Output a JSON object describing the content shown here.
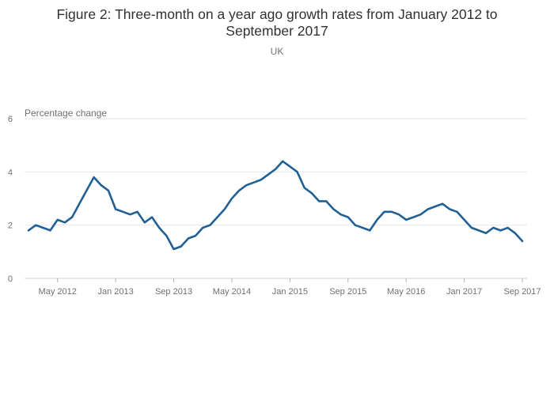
{
  "chart_data": {
    "type": "line",
    "title_lines": [
      "Figure 2: Three-month on a year ago growth rates from January 2012 to",
      "September 2017"
    ],
    "subtitle": "UK",
    "ylabel": "Percentage change",
    "xlabel": "",
    "ylim": [
      0,
      6
    ],
    "yticks": [
      0,
      2,
      4,
      6
    ],
    "x_tick_labels": [
      "May 2012",
      "Jan 2013",
      "Sep 2013",
      "May 2014",
      "Jan 2015",
      "Sep 2015",
      "May 2016",
      "Jan 2017",
      "Sep 2017"
    ],
    "x_tick_months": [
      "2012-05",
      "2013-01",
      "2013-09",
      "2014-05",
      "2015-01",
      "2015-09",
      "2016-05",
      "2017-01",
      "2017-09"
    ],
    "x_start": "2012-01",
    "x_end": "2017-09",
    "grid": true,
    "legend": "none",
    "series": [
      {
        "color": "#206095",
        "x": [
          "2012-01",
          "2012-02",
          "2012-03",
          "2012-04",
          "2012-05",
          "2012-06",
          "2012-07",
          "2012-08",
          "2012-09",
          "2012-10",
          "2012-11",
          "2012-12",
          "2013-01",
          "2013-02",
          "2013-03",
          "2013-04",
          "2013-05",
          "2013-06",
          "2013-07",
          "2013-08",
          "2013-09",
          "2013-10",
          "2013-11",
          "2013-12",
          "2014-01",
          "2014-02",
          "2014-03",
          "2014-04",
          "2014-05",
          "2014-06",
          "2014-07",
          "2014-08",
          "2014-09",
          "2014-10",
          "2014-11",
          "2014-12",
          "2015-01",
          "2015-02",
          "2015-03",
          "2015-04",
          "2015-05",
          "2015-06",
          "2015-07",
          "2015-08",
          "2015-09",
          "2015-10",
          "2015-11",
          "2015-12",
          "2016-01",
          "2016-02",
          "2016-03",
          "2016-04",
          "2016-05",
          "2016-06",
          "2016-07",
          "2016-08",
          "2016-09",
          "2016-10",
          "2016-11",
          "2016-12",
          "2017-01",
          "2017-02",
          "2017-03",
          "2017-04",
          "2017-05",
          "2017-06",
          "2017-07",
          "2017-08",
          "2017-09"
        ],
        "values": [
          1.8,
          2.0,
          1.9,
          1.8,
          2.2,
          2.1,
          2.3,
          2.8,
          3.3,
          3.8,
          3.5,
          3.3,
          2.6,
          2.5,
          2.4,
          2.5,
          2.1,
          2.3,
          1.9,
          1.6,
          1.1,
          1.2,
          1.5,
          1.6,
          1.9,
          2.0,
          2.3,
          2.6,
          3.0,
          3.3,
          3.5,
          3.6,
          3.7,
          3.9,
          4.1,
          4.4,
          4.2,
          4.0,
          3.4,
          3.2,
          2.9,
          2.9,
          2.6,
          2.4,
          2.3,
          2.0,
          1.9,
          1.8,
          2.2,
          2.5,
          2.5,
          2.4,
          2.2,
          2.3,
          2.4,
          2.6,
          2.7,
          2.8,
          2.6,
          2.5,
          2.2,
          1.9,
          1.8,
          1.7,
          1.9,
          1.8,
          1.9,
          1.7,
          1.4
        ]
      }
    ]
  }
}
